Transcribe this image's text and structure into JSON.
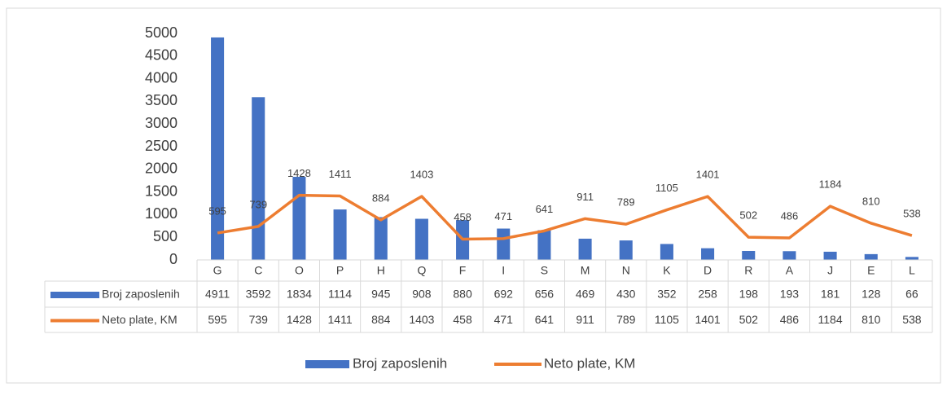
{
  "chart_data": {
    "type": "bar",
    "categories": [
      "G",
      "C",
      "O",
      "P",
      "H",
      "Q",
      "F",
      "I",
      "S",
      "M",
      "N",
      "K",
      "D",
      "R",
      "A",
      "J",
      "E",
      "L"
    ],
    "series": [
      {
        "name": "Broj zaposlenih",
        "type": "bar",
        "color": "#4472c4",
        "values": [
          4911,
          3592,
          1834,
          1114,
          945,
          908,
          880,
          692,
          656,
          469,
          430,
          352,
          258,
          198,
          193,
          181,
          128,
          66
        ]
      },
      {
        "name": "Neto plate, KM",
        "type": "line",
        "color": "#ed7d31",
        "values": [
          595,
          739,
          1428,
          1411,
          884,
          1403,
          458,
          471,
          641,
          911,
          789,
          1105,
          1401,
          502,
          486,
          1184,
          810,
          538
        ]
      }
    ],
    "ylim": [
      0,
      5000
    ],
    "yticks": [
      0,
      500,
      1000,
      1500,
      2000,
      2500,
      3000,
      3500,
      4000,
      4500,
      5000
    ],
    "grid": false,
    "data_table": true,
    "legend": "bottom"
  }
}
